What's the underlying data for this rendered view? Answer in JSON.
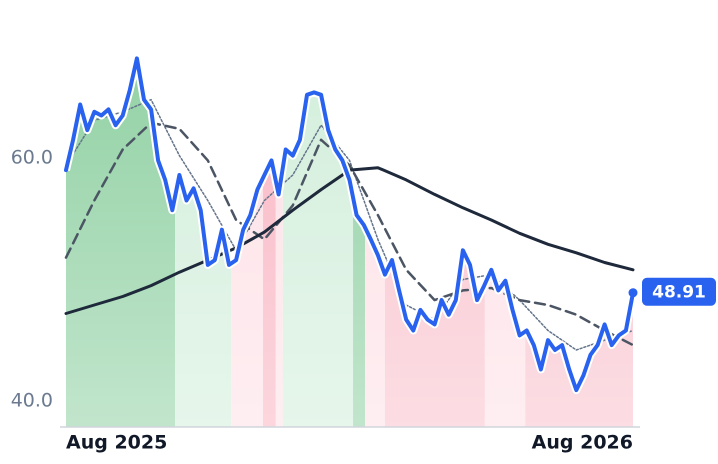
{
  "chart_data": {
    "type": "line",
    "xlim": [
      0,
      80
    ],
    "xticks": [
      {
        "value": 0,
        "label": "Aug 2025"
      },
      {
        "value": 80,
        "label": "Aug 2026"
      }
    ],
    "ylim": [
      37.9,
      71
    ],
    "yticks": [
      {
        "value": 60,
        "label": "60.0"
      },
      {
        "value": 40,
        "label": "40.0"
      }
    ],
    "grid": false,
    "series": [
      {
        "color": "#2962ef",
        "style": "solid",
        "width": 4,
        "values": [
          59.0,
          61.5,
          64.4,
          62.3,
          63.8,
          63.5,
          64.0,
          62.7,
          63.5,
          65.6,
          68.2,
          64.8,
          64.0,
          59.8,
          58.2,
          55.7,
          58.6,
          56.5,
          57.5,
          55.7,
          51.2,
          51.6,
          54.1,
          51.2,
          51.6,
          54.1,
          55.3,
          57.4,
          58.6,
          59.8,
          57.0,
          60.7,
          60.2,
          61.5,
          65.2,
          65.4,
          65.2,
          62.3,
          60.7,
          59.8,
          58.2,
          55.3,
          54.5,
          53.3,
          52.0,
          50.4,
          51.6,
          49.1,
          46.7,
          45.8,
          47.5,
          46.7,
          46.3,
          48.3,
          47.1,
          48.3,
          52.4,
          51.2,
          48.3,
          49.5,
          50.8,
          49.1,
          49.9,
          47.5,
          45.4,
          45.8,
          44.6,
          42.6,
          45.0,
          44.2,
          44.6,
          42.6,
          40.9,
          42.1,
          43.8,
          44.6,
          46.3,
          44.6,
          45.4,
          45.8,
          48.91
        ]
      },
      {
        "color": "#1e293b",
        "style": "solid",
        "width": 3,
        "x": [
          0,
          4,
          8,
          12,
          16,
          20,
          24,
          28,
          32,
          36,
          40,
          44,
          48,
          52,
          56,
          60,
          64,
          68,
          72,
          76,
          80
        ],
        "values": [
          47.2,
          47.9,
          48.6,
          49.5,
          50.6,
          51.6,
          52.6,
          53.9,
          55.7,
          57.4,
          59.0,
          59.2,
          58.2,
          57.0,
          55.9,
          54.9,
          53.8,
          52.9,
          52.2,
          51.4,
          50.8
        ]
      },
      {
        "color": "#4b5563",
        "style": "dashed",
        "width": 2.5,
        "x": [
          0,
          4,
          8,
          12,
          16,
          20,
          24,
          28,
          32,
          36,
          40,
          44,
          48,
          52,
          56,
          60,
          64,
          68,
          72,
          76,
          80
        ],
        "values": [
          51.8,
          56.5,
          60.7,
          62.9,
          62.4,
          59.8,
          54.9,
          53.3,
          56.1,
          61.5,
          59.4,
          55.3,
          50.8,
          48.3,
          49.1,
          49.3,
          48.3,
          47.9,
          47.1,
          45.8,
          44.6
        ]
      },
      {
        "color": "#64748b",
        "style": "dotted",
        "width": 1.5,
        "x": [
          0,
          4,
          8,
          12,
          16,
          20,
          24,
          28,
          32,
          36,
          40,
          44,
          48,
          52,
          56,
          60,
          64,
          68,
          72,
          76,
          80
        ],
        "values": [
          59.4,
          63.1,
          63.8,
          64.8,
          60.2,
          56.5,
          52.4,
          56.5,
          58.6,
          62.7,
          59.8,
          53.3,
          47.9,
          46.7,
          50.0,
          50.4,
          48.3,
          45.8,
          44.2,
          45.0,
          45.8
        ]
      }
    ],
    "regions": [
      {
        "from": 0,
        "to": 15.4,
        "color": "#8fd0a2"
      },
      {
        "from": 15.4,
        "to": 23.3,
        "color": "#d2eedb"
      },
      {
        "from": 23.3,
        "to": 27.8,
        "color": "#fde0e6"
      },
      {
        "from": 27.8,
        "to": 29.6,
        "color": "#f9b4c2"
      },
      {
        "from": 29.6,
        "to": 30.6,
        "color": "#fde0e6"
      },
      {
        "from": 30.6,
        "to": 40.5,
        "color": "#d2eedb"
      },
      {
        "from": 40.5,
        "to": 42.2,
        "color": "#8fd0a2"
      },
      {
        "from": 42.2,
        "to": 45.0,
        "color": "#fde0e6"
      },
      {
        "from": 45.0,
        "to": 59.1,
        "color": "#f9c1cc"
      },
      {
        "from": 59.1,
        "to": 64.8,
        "color": "#fde0e6"
      },
      {
        "from": 64.8,
        "to": 80,
        "color": "#f9c1cc"
      }
    ]
  }
}
